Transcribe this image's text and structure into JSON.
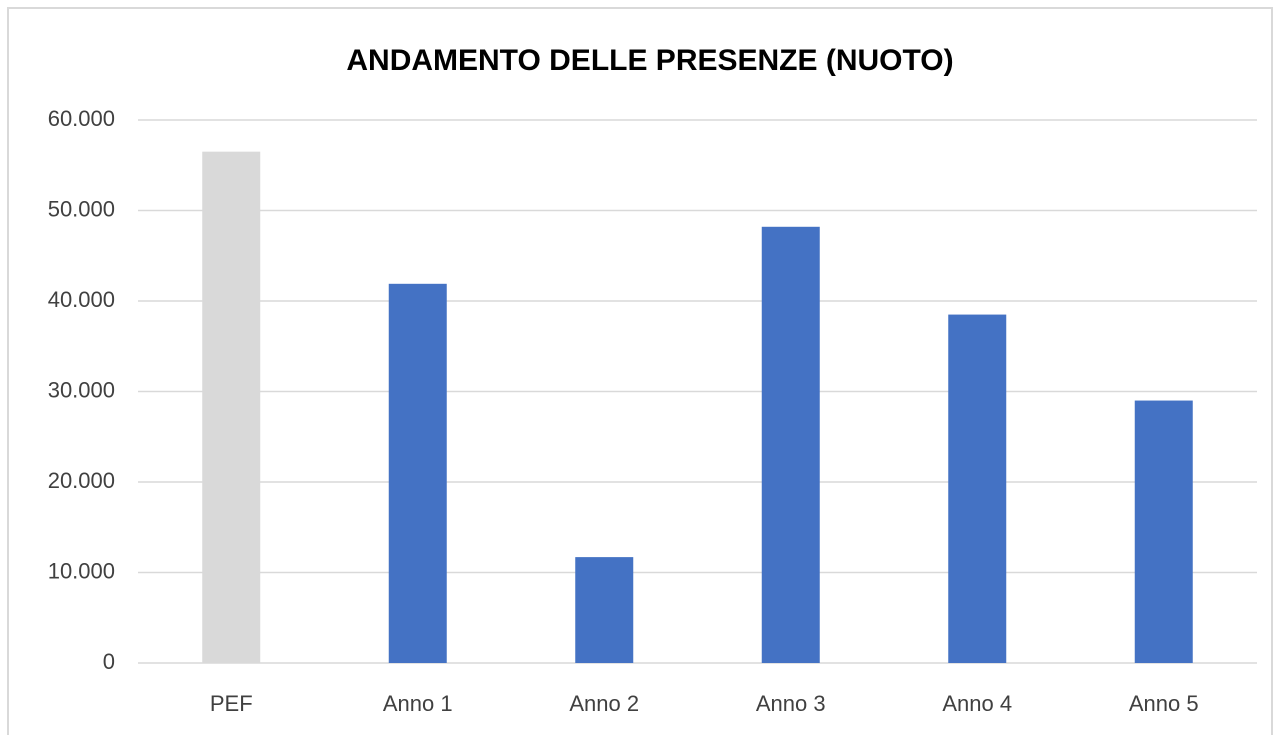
{
  "chart_data": {
    "type": "bar",
    "title": "ANDAMENTO DELLE PRESENZE (NUOTO)",
    "categories": [
      "PEF",
      "Anno 1",
      "Anno 2",
      "Anno 3",
      "Anno 4",
      "Anno 5"
    ],
    "values": [
      56500,
      41900,
      11700,
      48200,
      38500,
      29000
    ],
    "colors": [
      "#d9d9d9",
      "#4472c4",
      "#4472c4",
      "#4472c4",
      "#4472c4",
      "#4472c4"
    ],
    "ylim": [
      0,
      60000
    ],
    "yticks": [
      0,
      {
        "value": 10000,
        "label": "10.000"
      },
      {
        "value": 20000,
        "label": "20.000"
      },
      {
        "value": 30000,
        "label": "30.000"
      },
      {
        "value": 40000,
        "label": "40.000"
      },
      {
        "value": 50000,
        "label": "50.000"
      },
      {
        "value": 60000,
        "label": "60.000"
      }
    ],
    "grid": true
  }
}
